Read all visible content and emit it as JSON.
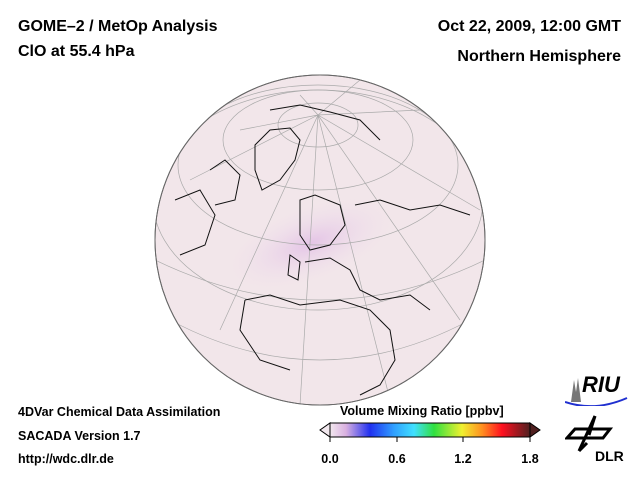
{
  "header": {
    "title": "GOME–2 / MetOp Analysis",
    "subtitle": "ClO at 55.4 hPa",
    "datetime": "Oct 22, 2009, 12:00 GMT",
    "region": "Northern Hemisphere"
  },
  "footer": {
    "line1": "4DVar Chemical Data Assimilation",
    "line2": "SACADA Version 1.7",
    "line3": "http://wdc.dlr.de"
  },
  "colorbar": {
    "title": "Volume Mixing Ratio [ppbv]",
    "ticks": [
      "0.0",
      "0.6",
      "1.2",
      "1.8"
    ],
    "range": [
      0.0,
      1.8
    ],
    "colors": [
      "#f2e8ee",
      "#d9b0e0",
      "#2030f0",
      "#30a0ff",
      "#40e0ff",
      "#30e040",
      "#f0f030",
      "#ff9020",
      "#ff1020",
      "#c01020",
      "#502020"
    ]
  },
  "logos": {
    "riu": "RIU",
    "dlr": "DLR"
  }
}
